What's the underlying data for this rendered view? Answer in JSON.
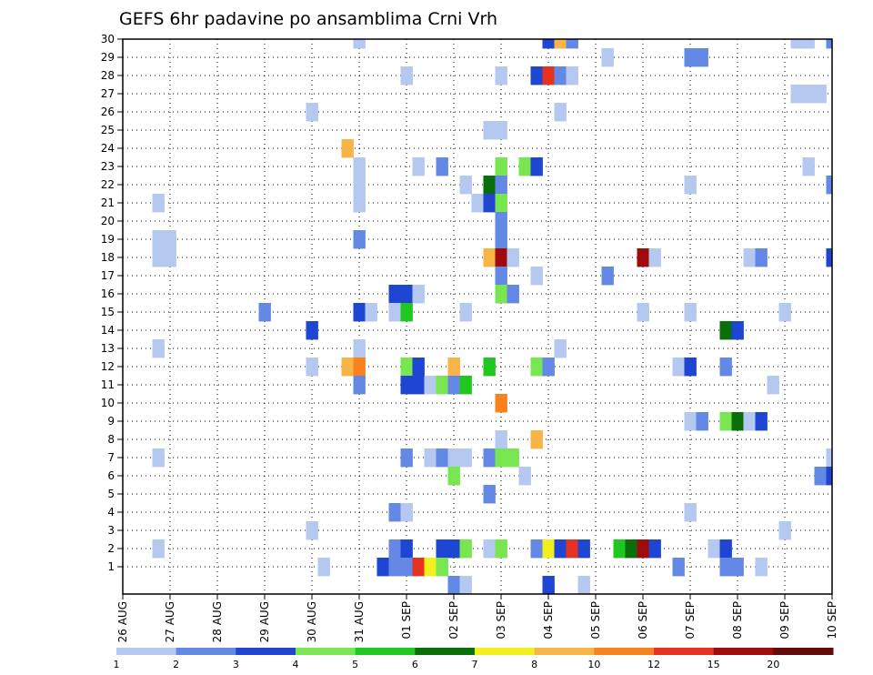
{
  "chart_data": {
    "type": "heatmap",
    "title": "GEFS 6hr padavine po ansamblima Crni Vrh",
    "xlabel": "",
    "ylabel": "",
    "y_members": [
      1,
      30
    ],
    "y_ticks": [
      "1",
      "2",
      "3",
      "4",
      "5",
      "6",
      "7",
      "8",
      "9",
      "10",
      "11",
      "12",
      "13",
      "14",
      "15",
      "16",
      "17",
      "18",
      "19",
      "20",
      "21",
      "22",
      "23",
      "24",
      "25",
      "26",
      "27",
      "28",
      "29",
      "30"
    ],
    "x_ticks": [
      "26 AUG",
      "27 AUG",
      "28 AUG",
      "29 AUG",
      "30 AUG",
      "31 AUG",
      "01 SEP",
      "02 SEP",
      "03 SEP",
      "04 SEP",
      "05 SEP",
      "06 SEP",
      "07 SEP",
      "08 SEP",
      "09 SEP",
      "10 SEP"
    ],
    "x_range_days": [
      0,
      15
    ],
    "step_hours": 6,
    "grid": true,
    "legend_position": "bottom",
    "legend_labels": [
      "1",
      "2",
      "3",
      "4",
      "5",
      "6",
      "7",
      "8",
      "10",
      "12",
      "15",
      "20"
    ],
    "levels": [
      {
        "min": 1,
        "color": "#b4c8f0"
      },
      {
        "min": 2,
        "color": "#6488e6"
      },
      {
        "min": 3,
        "color": "#1e46d2"
      },
      {
        "min": 4,
        "color": "#78e650"
      },
      {
        "min": 5,
        "color": "#1ec81e"
      },
      {
        "min": 6,
        "color": "#0a6e0a"
      },
      {
        "min": 7,
        "color": "#f0f01e"
      },
      {
        "min": 8,
        "color": "#f8b446"
      },
      {
        "min": 10,
        "color": "#f8821e"
      },
      {
        "min": 12,
        "color": "#e6321e"
      },
      {
        "min": 15,
        "color": "#a00a0a"
      },
      {
        "min": 20,
        "color": "#640a0a"
      }
    ],
    "cells": [
      {
        "member": 30,
        "step": 20,
        "value": 1
      },
      {
        "member": 30,
        "step": 36,
        "value": 3
      },
      {
        "member": 30,
        "step": 37,
        "value": 8
      },
      {
        "member": 30,
        "step": 38,
        "value": 2
      },
      {
        "member": 30,
        "step": 57,
        "value": 1
      },
      {
        "member": 30,
        "step": 58,
        "value": 1
      },
      {
        "member": 30,
        "step": 60,
        "value": 2
      },
      {
        "member": 29,
        "step": 41,
        "value": 1
      },
      {
        "member": 29,
        "step": 48,
        "value": 2
      },
      {
        "member": 29,
        "step": 49,
        "value": 2
      },
      {
        "member": 28,
        "step": 24,
        "value": 1
      },
      {
        "member": 28,
        "step": 32,
        "value": 1
      },
      {
        "member": 28,
        "step": 35,
        "value": 3
      },
      {
        "member": 28,
        "step": 36,
        "value": 12
      },
      {
        "member": 28,
        "step": 37,
        "value": 2
      },
      {
        "member": 28,
        "step": 38,
        "value": 1
      },
      {
        "member": 27,
        "step": 57,
        "value": 1
      },
      {
        "member": 27,
        "step": 58,
        "value": 1
      },
      {
        "member": 27,
        "step": 59,
        "value": 1
      },
      {
        "member": 26,
        "step": 16,
        "value": 1
      },
      {
        "member": 26,
        "step": 37,
        "value": 1
      },
      {
        "member": 25,
        "step": 31,
        "value": 1
      },
      {
        "member": 25,
        "step": 32,
        "value": 1
      },
      {
        "member": 24,
        "step": 19,
        "value": 8
      },
      {
        "member": 23,
        "step": 20,
        "value": 1
      },
      {
        "member": 23,
        "step": 25,
        "value": 1
      },
      {
        "member": 23,
        "step": 27,
        "value": 2
      },
      {
        "member": 23,
        "step": 32,
        "value": 4
      },
      {
        "member": 23,
        "step": 34,
        "value": 4
      },
      {
        "member": 23,
        "step": 35,
        "value": 3
      },
      {
        "member": 23,
        "step": 58,
        "value": 1
      },
      {
        "member": 22,
        "step": 20,
        "value": 1
      },
      {
        "member": 22,
        "step": 29,
        "value": 1
      },
      {
        "member": 22,
        "step": 31,
        "value": 6
      },
      {
        "member": 22,
        "step": 32,
        "value": 2
      },
      {
        "member": 22,
        "step": 48,
        "value": 1
      },
      {
        "member": 22,
        "step": 60,
        "value": 2
      },
      {
        "member": 21,
        "step": 3,
        "value": 1
      },
      {
        "member": 21,
        "step": 20,
        "value": 1
      },
      {
        "member": 21,
        "step": 30,
        "value": 1
      },
      {
        "member": 21,
        "step": 31,
        "value": 3
      },
      {
        "member": 21,
        "step": 32,
        "value": 4
      },
      {
        "member": 20,
        "step": 32,
        "value": 2
      },
      {
        "member": 19,
        "step": 3,
        "value": 1
      },
      {
        "member": 19,
        "step": 4,
        "value": 1
      },
      {
        "member": 19,
        "step": 20,
        "value": 2
      },
      {
        "member": 19,
        "step": 32,
        "value": 2
      },
      {
        "member": 18,
        "step": 3,
        "value": 1
      },
      {
        "member": 18,
        "step": 4,
        "value": 1
      },
      {
        "member": 18,
        "step": 31,
        "value": 8
      },
      {
        "member": 18,
        "step": 32,
        "value": 15
      },
      {
        "member": 18,
        "step": 33,
        "value": 1
      },
      {
        "member": 18,
        "step": 44,
        "value": 15
      },
      {
        "member": 18,
        "step": 45,
        "value": 1
      },
      {
        "member": 18,
        "step": 53,
        "value": 1
      },
      {
        "member": 18,
        "step": 54,
        "value": 2
      },
      {
        "member": 18,
        "step": 60,
        "value": 3
      },
      {
        "member": 18,
        "step": 61,
        "value": 2
      },
      {
        "member": 17,
        "step": 32,
        "value": 2
      },
      {
        "member": 17,
        "step": 35,
        "value": 1
      },
      {
        "member": 17,
        "step": 41,
        "value": 2
      },
      {
        "member": 16,
        "step": 23,
        "value": 3
      },
      {
        "member": 16,
        "step": 24,
        "value": 3
      },
      {
        "member": 16,
        "step": 25,
        "value": 1
      },
      {
        "member": 16,
        "step": 32,
        "value": 4
      },
      {
        "member": 16,
        "step": 33,
        "value": 2
      },
      {
        "member": 15,
        "step": 12,
        "value": 2
      },
      {
        "member": 15,
        "step": 20,
        "value": 3
      },
      {
        "member": 15,
        "step": 21,
        "value": 1
      },
      {
        "member": 15,
        "step": 23,
        "value": 1
      },
      {
        "member": 15,
        "step": 24,
        "value": 5
      },
      {
        "member": 15,
        "step": 29,
        "value": 1
      },
      {
        "member": 15,
        "step": 44,
        "value": 1
      },
      {
        "member": 15,
        "step": 48,
        "value": 1
      },
      {
        "member": 15,
        "step": 56,
        "value": 1
      },
      {
        "member": 14,
        "step": 16,
        "value": 3
      },
      {
        "member": 14,
        "step": 51,
        "value": 6
      },
      {
        "member": 14,
        "step": 52,
        "value": 3
      },
      {
        "member": 13,
        "step": 3,
        "value": 1
      },
      {
        "member": 13,
        "step": 20,
        "value": 1
      },
      {
        "member": 13,
        "step": 37,
        "value": 1
      },
      {
        "member": 12,
        "step": 16,
        "value": 1
      },
      {
        "member": 12,
        "step": 19,
        "value": 8
      },
      {
        "member": 12,
        "step": 20,
        "value": 10
      },
      {
        "member": 12,
        "step": 24,
        "value": 4
      },
      {
        "member": 12,
        "step": 25,
        "value": 3
      },
      {
        "member": 12,
        "step": 28,
        "value": 8
      },
      {
        "member": 12,
        "step": 31,
        "value": 5
      },
      {
        "member": 12,
        "step": 35,
        "value": 4
      },
      {
        "member": 12,
        "step": 36,
        "value": 2
      },
      {
        "member": 12,
        "step": 47,
        "value": 1
      },
      {
        "member": 12,
        "step": 48,
        "value": 3
      },
      {
        "member": 12,
        "step": 51,
        "value": 2
      },
      {
        "member": 11,
        "step": 20,
        "value": 2
      },
      {
        "member": 11,
        "step": 24,
        "value": 3
      },
      {
        "member": 11,
        "step": 25,
        "value": 3
      },
      {
        "member": 11,
        "step": 26,
        "value": 1
      },
      {
        "member": 11,
        "step": 27,
        "value": 4
      },
      {
        "member": 11,
        "step": 28,
        "value": 2
      },
      {
        "member": 11,
        "step": 29,
        "value": 5
      },
      {
        "member": 11,
        "step": 55,
        "value": 1
      },
      {
        "member": 10,
        "step": 32,
        "value": 10
      },
      {
        "member": 9,
        "step": 48,
        "value": 1
      },
      {
        "member": 9,
        "step": 49,
        "value": 2
      },
      {
        "member": 9,
        "step": 51,
        "value": 4
      },
      {
        "member": 9,
        "step": 52,
        "value": 6
      },
      {
        "member": 9,
        "step": 53,
        "value": 1
      },
      {
        "member": 9,
        "step": 54,
        "value": 3
      },
      {
        "member": 8,
        "step": 32,
        "value": 1
      },
      {
        "member": 8,
        "step": 35,
        "value": 8
      },
      {
        "member": 7,
        "step": 3,
        "value": 1
      },
      {
        "member": 7,
        "step": 24,
        "value": 2
      },
      {
        "member": 7,
        "step": 26,
        "value": 1
      },
      {
        "member": 7,
        "step": 27,
        "value": 2
      },
      {
        "member": 7,
        "step": 28,
        "value": 1
      },
      {
        "member": 7,
        "step": 29,
        "value": 1
      },
      {
        "member": 7,
        "step": 31,
        "value": 2
      },
      {
        "member": 7,
        "step": 32,
        "value": 4
      },
      {
        "member": 7,
        "step": 33,
        "value": 4
      },
      {
        "member": 7,
        "step": 60,
        "value": 1
      },
      {
        "member": 6,
        "step": 28,
        "value": 4
      },
      {
        "member": 6,
        "step": 34,
        "value": 1
      },
      {
        "member": 6,
        "step": 59,
        "value": 2
      },
      {
        "member": 6,
        "step": 60,
        "value": 3
      },
      {
        "member": 5,
        "step": 31,
        "value": 2
      },
      {
        "member": 4,
        "step": 23,
        "value": 2
      },
      {
        "member": 4,
        "step": 24,
        "value": 1
      },
      {
        "member": 4,
        "step": 48,
        "value": 1
      },
      {
        "member": 4,
        "step": 61,
        "value": 1
      },
      {
        "member": 3,
        "step": 16,
        "value": 1
      },
      {
        "member": 3,
        "step": 56,
        "value": 1
      },
      {
        "member": 2,
        "step": 3,
        "value": 1
      },
      {
        "member": 2,
        "step": 23,
        "value": 2
      },
      {
        "member": 2,
        "step": 24,
        "value": 3
      },
      {
        "member": 2,
        "step": 27,
        "value": 3
      },
      {
        "member": 2,
        "step": 28,
        "value": 3
      },
      {
        "member": 2,
        "step": 29,
        "value": 4
      },
      {
        "member": 2,
        "step": 31,
        "value": 1
      },
      {
        "member": 2,
        "step": 32,
        "value": 4
      },
      {
        "member": 2,
        "step": 35,
        "value": 2
      },
      {
        "member": 2,
        "step": 36,
        "value": 7
      },
      {
        "member": 2,
        "step": 37,
        "value": 3
      },
      {
        "member": 2,
        "step": 38,
        "value": 12
      },
      {
        "member": 2,
        "step": 39,
        "value": 3
      },
      {
        "member": 2,
        "step": 42,
        "value": 5
      },
      {
        "member": 2,
        "step": 43,
        "value": 6
      },
      {
        "member": 2,
        "step": 44,
        "value": 15
      },
      {
        "member": 2,
        "step": 45,
        "value": 3
      },
      {
        "member": 2,
        "step": 50,
        "value": 1
      },
      {
        "member": 2,
        "step": 51,
        "value": 3
      },
      {
        "member": 1,
        "step": 17,
        "value": 1
      },
      {
        "member": 1,
        "step": 22,
        "value": 3
      },
      {
        "member": 1,
        "step": 23,
        "value": 2
      },
      {
        "member": 1,
        "step": 24,
        "value": 2
      },
      {
        "member": 1,
        "step": 25,
        "value": 12
      },
      {
        "member": 1,
        "step": 26,
        "value": 7
      },
      {
        "member": 1,
        "step": 27,
        "value": 4
      },
      {
        "member": 1,
        "step": 47,
        "value": 2
      },
      {
        "member": 1,
        "step": 51,
        "value": 2
      },
      {
        "member": 1,
        "step": 52,
        "value": 2
      },
      {
        "member": 1,
        "step": 54,
        "value": 1
      },
      {
        "member": 0,
        "step": 28,
        "value": 2
      },
      {
        "member": 0,
        "step": 29,
        "value": 1
      },
      {
        "member": 0,
        "step": 36,
        "value": 3
      },
      {
        "member": 0,
        "step": 39,
        "value": 1
      }
    ]
  }
}
